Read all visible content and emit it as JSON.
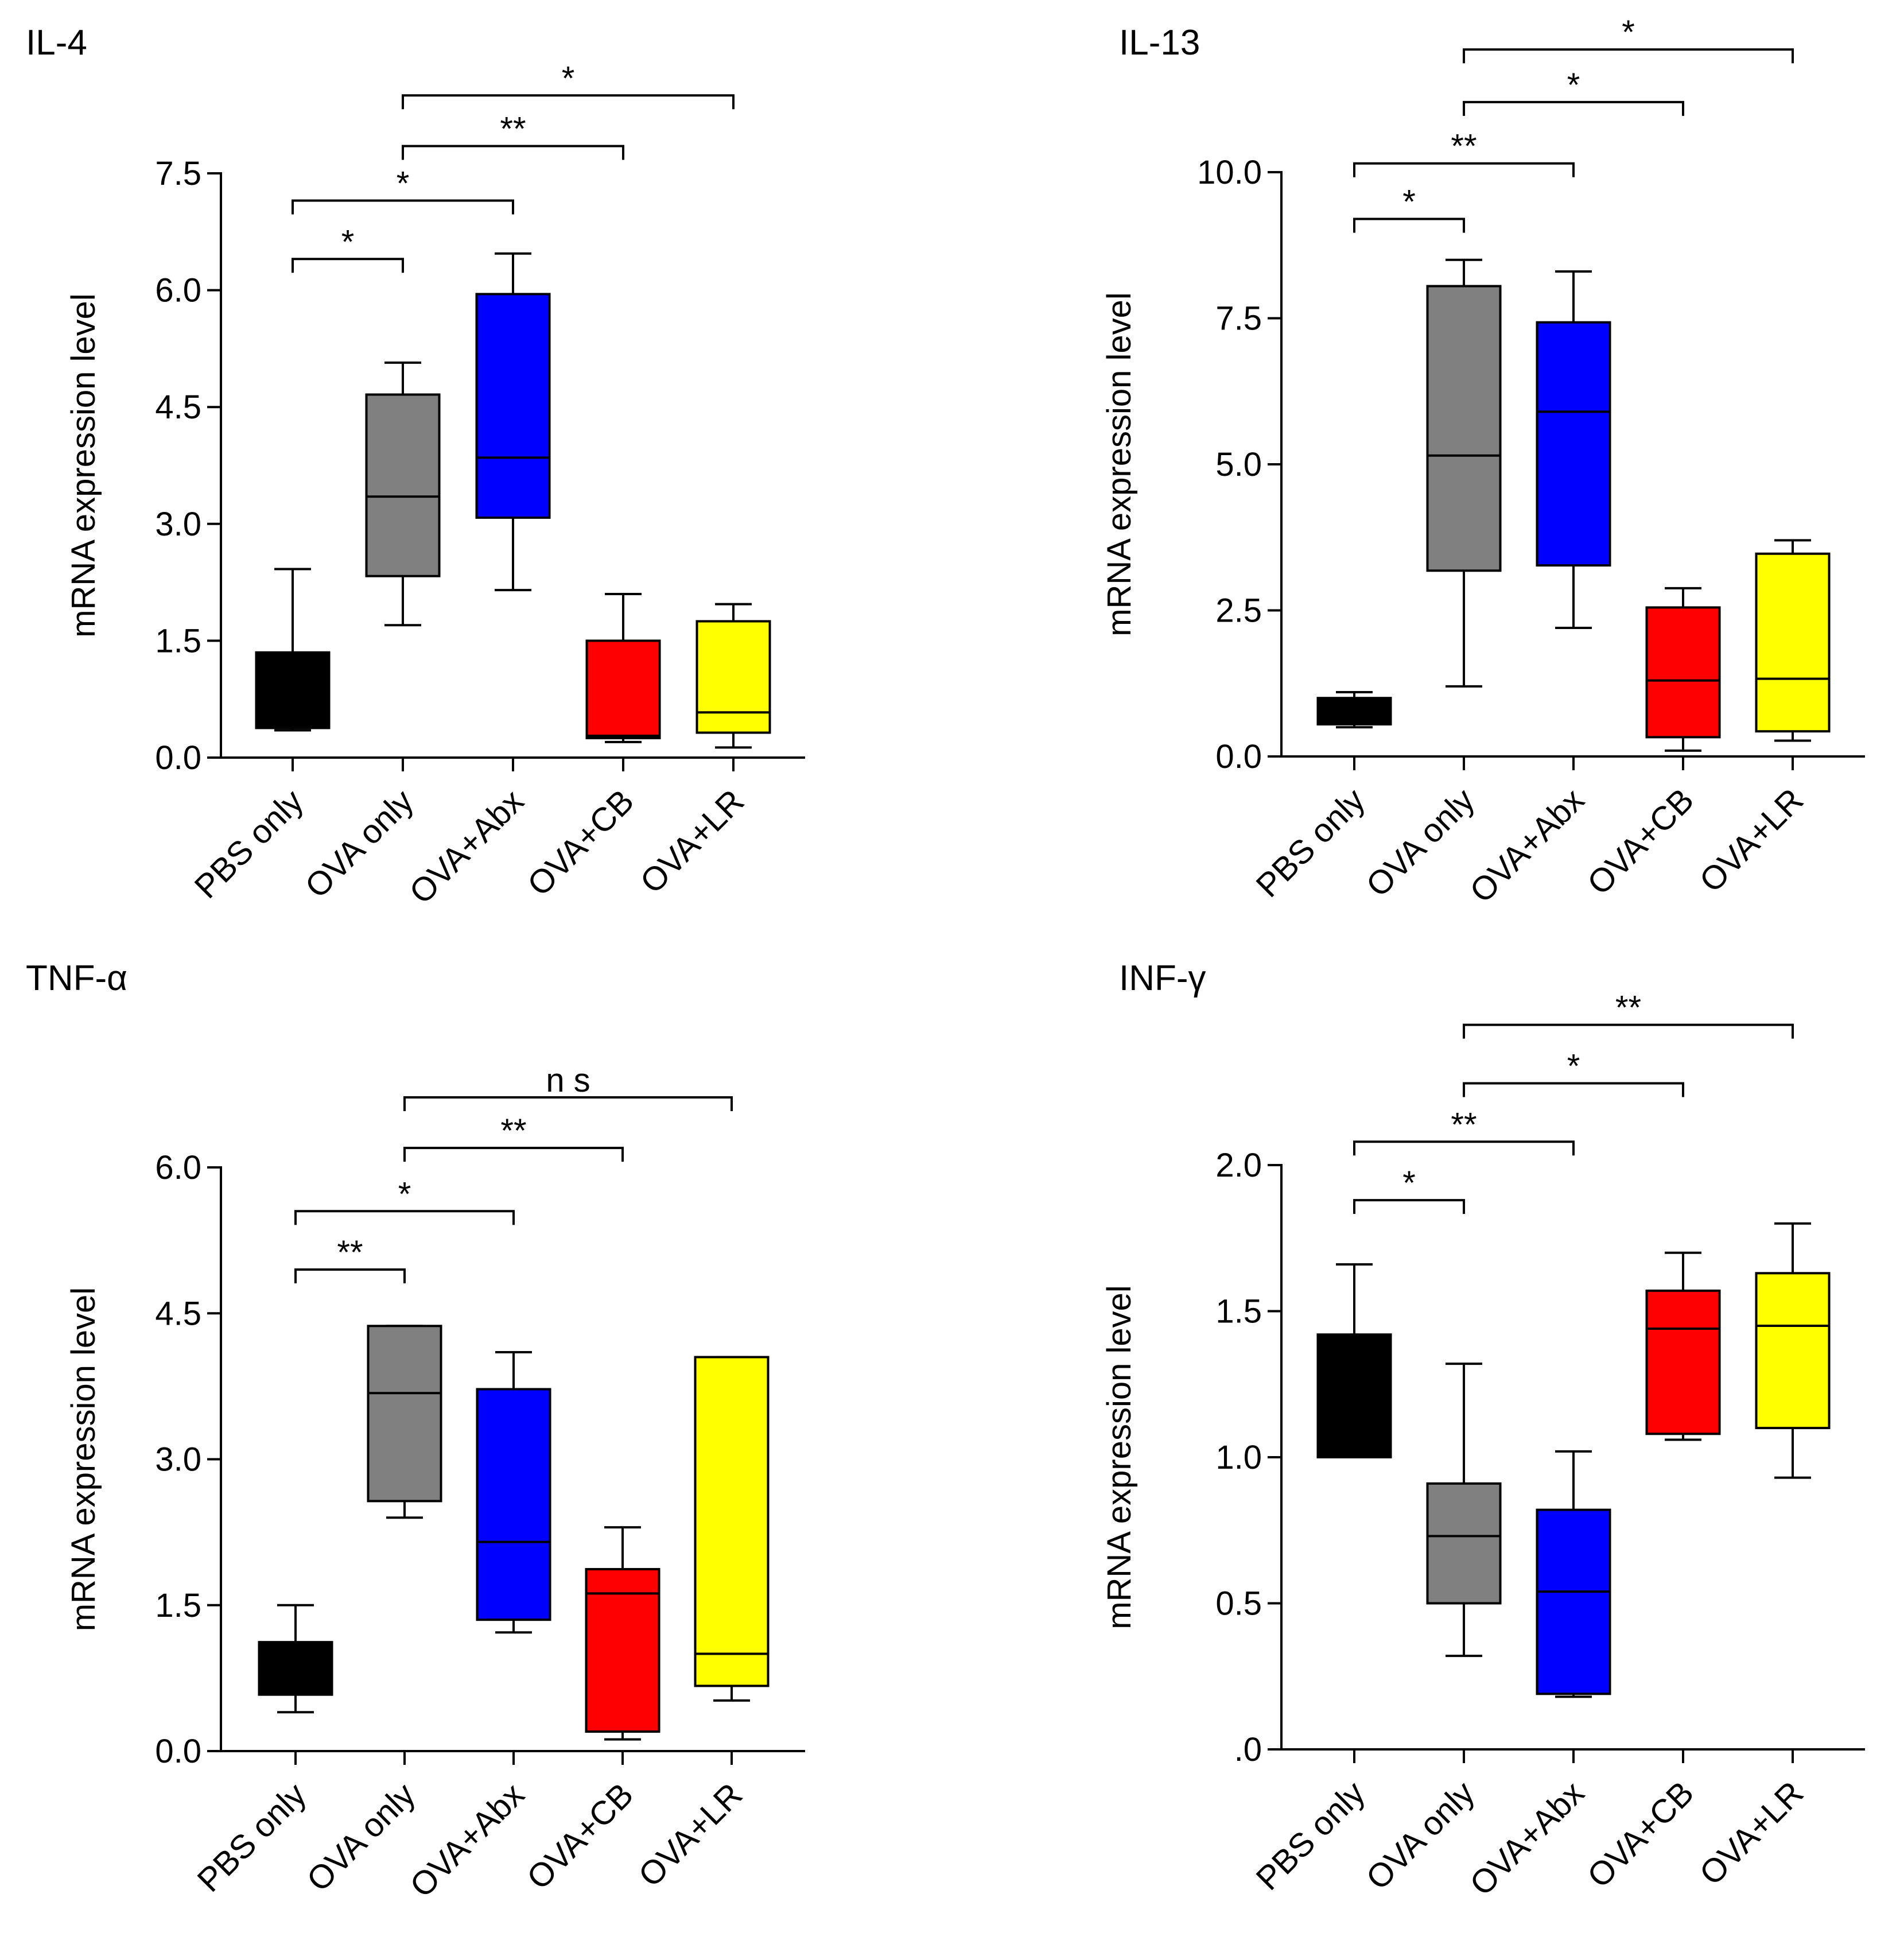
{
  "chart_data": [
    {
      "type": "box",
      "title": "IL-4",
      "ylabel": "mRNA expression level",
      "ylim": [
        0,
        7.5
      ],
      "yticks": [
        "0.0",
        "1.5",
        "3.0",
        "4.5",
        "6.0",
        "7.5"
      ],
      "categories": [
        "PBS only",
        "OVA only",
        "OVA+Abx",
        "OVA+CB",
        "OVA+LR"
      ],
      "boxes": [
        {
          "min": 0.35,
          "q1": 0.38,
          "median": 0.55,
          "q3": 1.35,
          "max": 2.42,
          "color": "#000000"
        },
        {
          "min": 1.7,
          "q1": 2.33,
          "median": 3.35,
          "q3": 4.66,
          "max": 5.07,
          "color": "#808080"
        },
        {
          "min": 2.15,
          "q1": 3.08,
          "median": 3.85,
          "q3": 5.95,
          "max": 6.47,
          "color": "#0000FF"
        },
        {
          "min": 0.2,
          "q1": 0.25,
          "median": 0.28,
          "q3": 1.5,
          "max": 2.1,
          "color": "#FF0000"
        },
        {
          "min": 0.13,
          "q1": 0.32,
          "median": 0.58,
          "q3": 1.75,
          "max": 1.97,
          "color": "#FFFF00"
        }
      ],
      "significance": [
        {
          "from": 0,
          "to": 1,
          "label": "*",
          "y": 6.4
        },
        {
          "from": 0,
          "to": 2,
          "label": "*",
          "y": 7.15
        },
        {
          "from": 1,
          "to": 3,
          "label": "**",
          "y": 7.85
        },
        {
          "from": 1,
          "to": 4,
          "label": "*",
          "y": 8.5
        }
      ]
    },
    {
      "type": "box",
      "title": "IL-13",
      "ylabel": "mRNA expression level",
      "ylim": [
        0,
        10
      ],
      "yticks": [
        "0.0",
        "2.5",
        "5.0",
        "7.5",
        "10.0"
      ],
      "categories": [
        "PBS only",
        "OVA only",
        "OVA+Abx",
        "OVA+CB",
        "OVA+LR"
      ],
      "boxes": [
        {
          "min": 0.5,
          "q1": 0.55,
          "median": 0.8,
          "q3": 1.0,
          "max": 1.1,
          "color": "#000000"
        },
        {
          "min": 1.2,
          "q1": 3.18,
          "median": 5.15,
          "q3": 8.05,
          "max": 8.5,
          "color": "#808080"
        },
        {
          "min": 2.2,
          "q1": 3.27,
          "median": 5.9,
          "q3": 7.43,
          "max": 8.3,
          "color": "#0000FF"
        },
        {
          "min": 0.1,
          "q1": 0.33,
          "median": 1.3,
          "q3": 2.55,
          "max": 2.88,
          "color": "#FF0000"
        },
        {
          "min": 0.27,
          "q1": 0.43,
          "median": 1.33,
          "q3": 3.47,
          "max": 3.7,
          "color": "#FFFF00"
        }
      ],
      "significance": [
        {
          "from": 0,
          "to": 1,
          "label": "*",
          "y": 9.2
        },
        {
          "from": 0,
          "to": 2,
          "label": "**",
          "y": 10.15
        },
        {
          "from": 1,
          "to": 3,
          "label": "*",
          "y": 11.2
        },
        {
          "from": 1,
          "to": 4,
          "label": "*",
          "y": 12.1
        }
      ]
    },
    {
      "type": "box",
      "title": "TNF-α",
      "ylabel": "mRNA expression level",
      "ylim": [
        0,
        6.0
      ],
      "yticks": [
        "0.0",
        "1.5",
        "3.0",
        "4.5",
        "6.0"
      ],
      "categories": [
        "PBS only",
        "OVA only",
        "OVA+Abx",
        "OVA+CB",
        "OVA+LR"
      ],
      "boxes": [
        {
          "min": 0.4,
          "q1": 0.58,
          "median": 0.85,
          "q3": 1.12,
          "max": 1.5,
          "color": "#000000"
        },
        {
          "min": 2.4,
          "q1": 2.57,
          "median": 3.68,
          "q3": 4.37,
          "max": 4.37,
          "color": "#808080"
        },
        {
          "min": 1.22,
          "q1": 1.35,
          "median": 2.15,
          "q3": 3.72,
          "max": 4.1,
          "color": "#0000FF"
        },
        {
          "min": 0.12,
          "q1": 0.2,
          "median": 1.62,
          "q3": 1.87,
          "max": 2.3,
          "color": "#FF0000"
        },
        {
          "min": 0.52,
          "q1": 0.67,
          "median": 1.0,
          "q3": 4.05,
          "max": 4.05,
          "color": "#FFFF00"
        }
      ],
      "significance": [
        {
          "from": 0,
          "to": 1,
          "label": "**",
          "y": 4.95
        },
        {
          "from": 0,
          "to": 2,
          "label": "*",
          "y": 5.55
        },
        {
          "from": 1,
          "to": 3,
          "label": "**",
          "y": 6.2
        },
        {
          "from": 1,
          "to": 4,
          "label": "n s",
          "y": 6.72
        }
      ]
    },
    {
      "type": "box",
      "title": "INF-γ",
      "ylabel": "mRNA expression level",
      "ylim": [
        0,
        2.0
      ],
      "yticks": [
        ".0",
        "0.5",
        "1.0",
        "1.5",
        "2.0"
      ],
      "categories": [
        "PBS only",
        "OVA only",
        "OVA+Abx",
        "OVA+CB",
        "OVA+LR"
      ],
      "boxes": [
        {
          "min": 1.0,
          "q1": 1.0,
          "median": 1.0,
          "q3": 1.42,
          "max": 1.66,
          "color": "#000000"
        },
        {
          "min": 0.32,
          "q1": 0.5,
          "median": 0.73,
          "q3": 0.91,
          "max": 1.32,
          "color": "#808080"
        },
        {
          "min": 0.18,
          "q1": 0.19,
          "median": 0.54,
          "q3": 0.82,
          "max": 1.02,
          "color": "#0000FF"
        },
        {
          "min": 1.06,
          "q1": 1.08,
          "median": 1.44,
          "q3": 1.57,
          "max": 1.7,
          "color": "#FF0000"
        },
        {
          "min": 0.93,
          "q1": 1.1,
          "median": 1.45,
          "q3": 1.63,
          "max": 1.8,
          "color": "#FFFF00"
        }
      ],
      "significance": [
        {
          "from": 0,
          "to": 1,
          "label": "*",
          "y": 1.88
        },
        {
          "from": 0,
          "to": 2,
          "label": "**",
          "y": 2.08
        },
        {
          "from": 1,
          "to": 3,
          "label": "*",
          "y": 2.28
        },
        {
          "from": 1,
          "to": 4,
          "label": "**",
          "y": 2.48
        }
      ]
    }
  ]
}
